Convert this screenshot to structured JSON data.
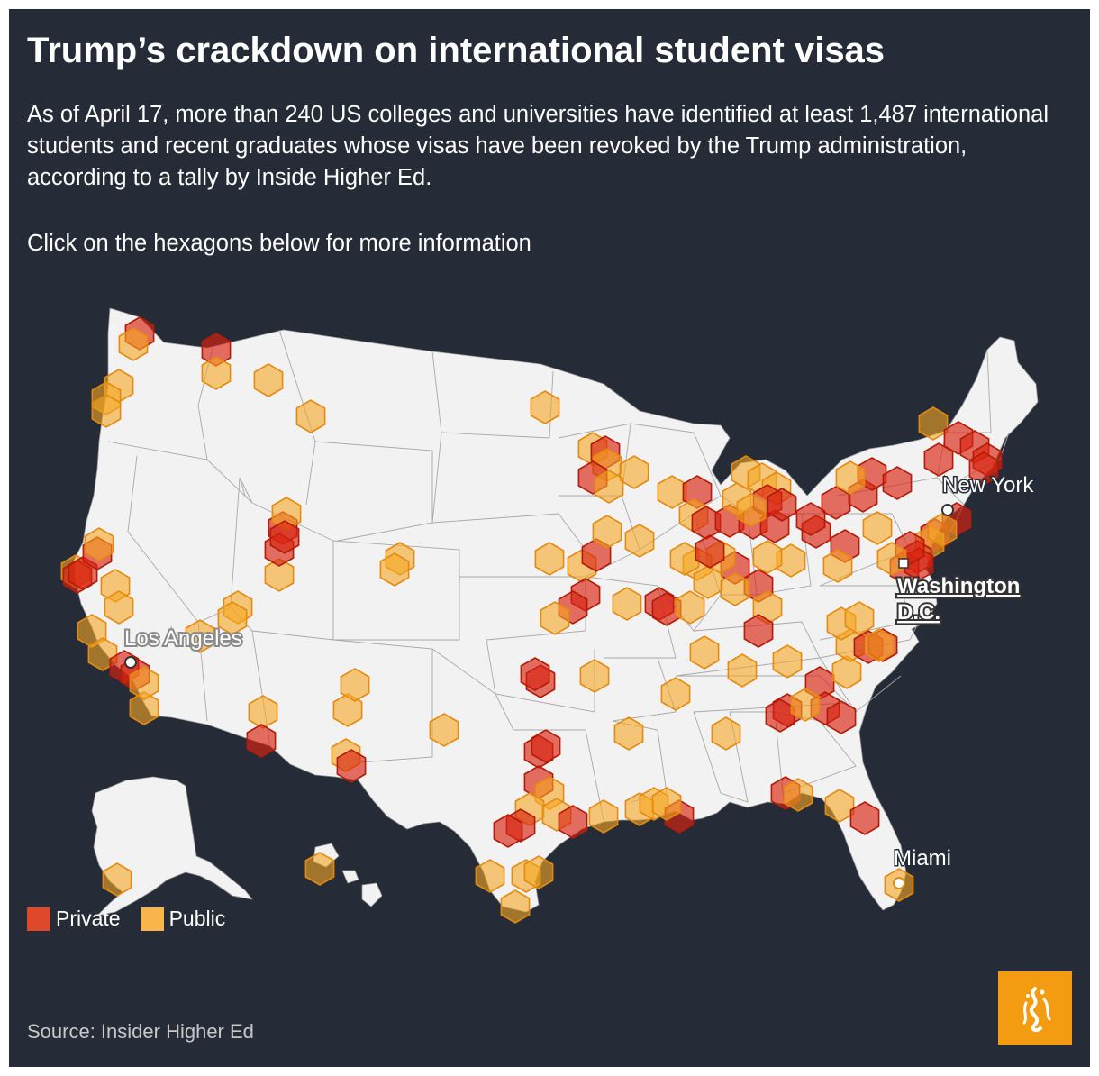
{
  "title": "Trump’s crackdown on international student visas",
  "description": "As of April 17, more than 240 US colleges and universities have identified at least 1,487 international students and recent graduates whose visas have been revoked by the Trump administration, according to a tally by Inside Higher Ed.",
  "instruction": "Click on the hexagons below for more information",
  "cities": {
    "new_york": "New York",
    "washington_line1": "Washington",
    "washington_line2": "D.C.",
    "los_angeles": "Los Angeles",
    "miami": "Miami"
  },
  "legend": {
    "private": "Private",
    "public": "Public"
  },
  "colors": {
    "background": "#252c37",
    "land": "#f2f2f2",
    "private": "#d8240f",
    "public": "#f5a623"
  },
  "source": "Source: Insider Higher Ed",
  "logo_icon": "al-jazeera-logo-icon"
}
